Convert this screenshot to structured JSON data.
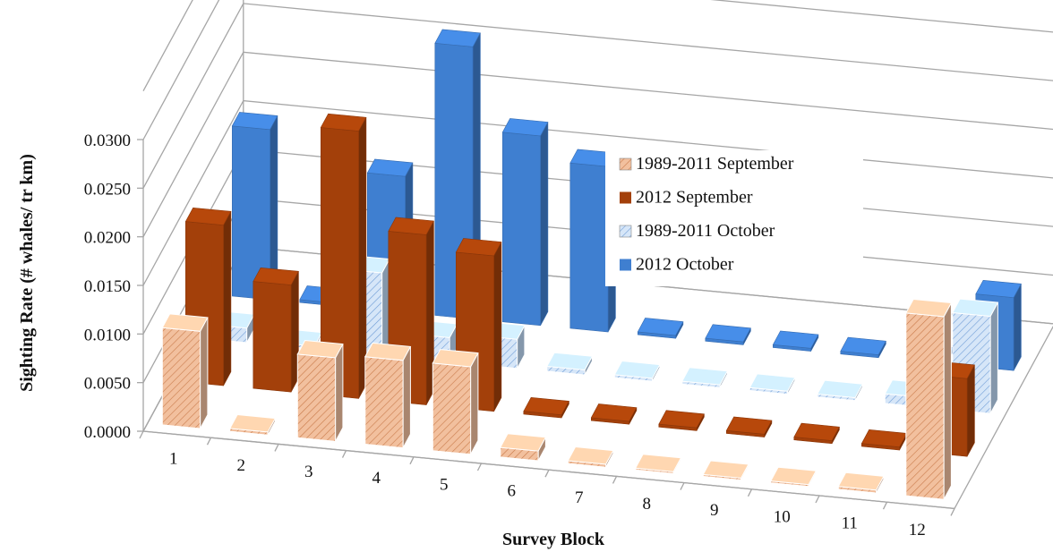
{
  "chart_data": {
    "type": "bar",
    "subtype": "3d-clustered-column",
    "title": "",
    "xlabel": "Survey Block",
    "ylabel": "Sighting Rate (# whales/ tr km)",
    "categories": [
      "1",
      "2",
      "3",
      "4",
      "5",
      "6",
      "7",
      "8",
      "9",
      "10",
      "11",
      "12"
    ],
    "ylim": [
      0,
      0.03
    ],
    "yticks": [
      "0.0000",
      "0.0050",
      "0.0100",
      "0.0150",
      "0.0200",
      "0.0250",
      "0.0300"
    ],
    "grid": true,
    "legend_position": "center-right",
    "series": [
      {
        "name": "1989-2011 September",
        "color": "#F2C09E",
        "pattern": "hatched",
        "values": [
          0.01,
          0.0003,
          0.0086,
          0.009,
          0.009,
          0.001,
          0.0003,
          0.0002,
          0.0002,
          0.0002,
          0.0003,
          0.0188
        ]
      },
      {
        "name": "2012 September",
        "color": "#A3400A",
        "pattern": "solid",
        "values": [
          0.0165,
          0.011,
          0.0275,
          0.0175,
          0.016,
          0.0003,
          0.0003,
          0.0003,
          0.0003,
          0.0003,
          0.0003,
          0.008
        ]
      },
      {
        "name": "1989-2011 October",
        "color": "#BDD7F4",
        "pattern": "hatched",
        "values": [
          0.0015,
          0.0003,
          0.0085,
          0.0025,
          0.003,
          0.0005,
          0.0003,
          0.0003,
          0.0003,
          0.0003,
          0.001,
          0.01
        ]
      },
      {
        "name": "2012 October",
        "color": "#3F7FD0",
        "pattern": "solid",
        "values": [
          0.0175,
          0.0003,
          0.014,
          0.028,
          0.0195,
          0.017,
          0.0003,
          0.0003,
          0.0003,
          0.0003,
          0.0003,
          0.0075
        ]
      }
    ]
  }
}
